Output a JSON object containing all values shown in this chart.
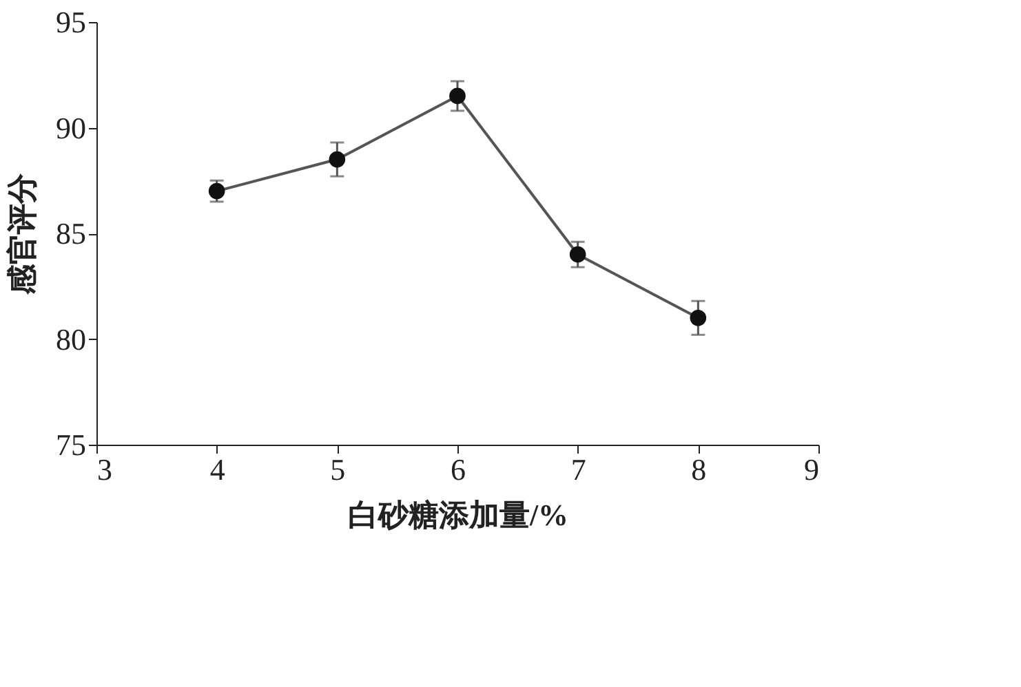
{
  "chart_data": {
    "type": "line",
    "xlabel": "白砂糖添加量/%",
    "ylabel": "感官评分",
    "x": [
      4,
      5,
      6,
      7,
      8
    ],
    "series": [
      {
        "color": "#555555",
        "values": [
          87.0,
          88.5,
          91.5,
          84.0,
          81.0
        ],
        "errors": [
          0.5,
          0.8,
          0.7,
          0.6,
          0.8
        ]
      }
    ],
    "xlim": [
      3,
      9
    ],
    "xticks": [
      3,
      4,
      5,
      6,
      7,
      8,
      9
    ],
    "ylim": [
      75,
      95
    ],
    "yticks": [
      75,
      80,
      85,
      90,
      95
    ],
    "grid": false,
    "marker": "circle",
    "line_style": "solid"
  }
}
